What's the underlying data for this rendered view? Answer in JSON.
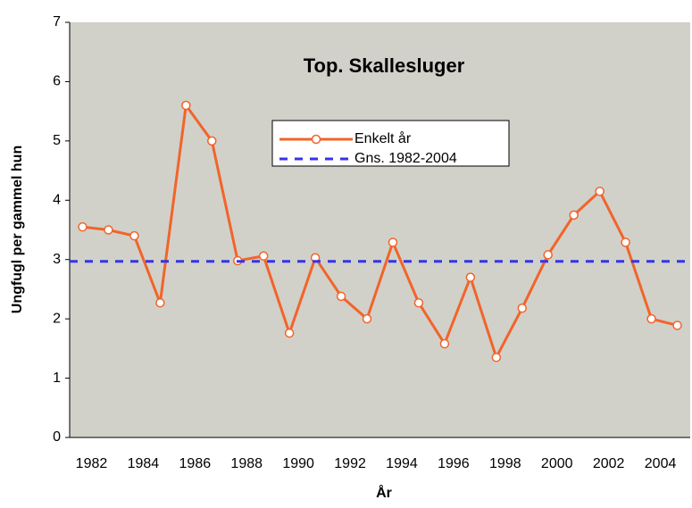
{
  "chart_data": {
    "type": "line",
    "title": "Top. Skallesluger",
    "x_label": "År",
    "y_label": "Ungfugl per gammel hun",
    "categories": [
      "1982",
      null,
      "1984",
      null,
      "1986",
      null,
      "1988",
      null,
      "1990",
      null,
      "1992",
      null,
      "1994",
      null,
      "1996",
      null,
      "1998",
      null,
      "2000",
      null,
      "2002",
      null,
      "2004",
      null
    ],
    "series": [
      {
        "name": "Enkelt år",
        "color": "#f2642a",
        "values": [
          3.55,
          3.5,
          3.4,
          2.27,
          5.6,
          5.0,
          2.98,
          3.06,
          1.76,
          3.03,
          2.38,
          2.0,
          3.29,
          2.27,
          1.58,
          2.7,
          1.35,
          2.18,
          3.08,
          3.75,
          4.15,
          3.29,
          2.0,
          1.89
        ]
      },
      {
        "name": "Gns. 1982-2004",
        "color": "#3333ee",
        "value": 2.97,
        "style": "dashed"
      }
    ],
    "ylim": [
      0,
      7
    ],
    "yticks": [
      0,
      1,
      2,
      3,
      4,
      5,
      6,
      7
    ],
    "grid": false,
    "plot_background": "#d1d1c9"
  }
}
